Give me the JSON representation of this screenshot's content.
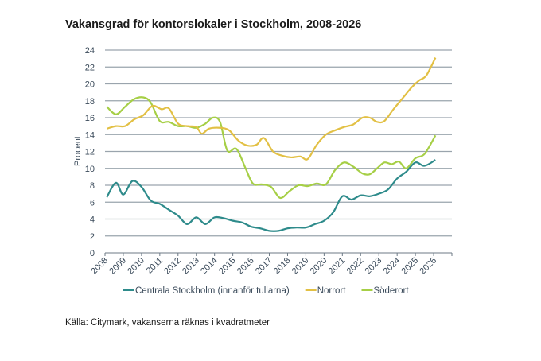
{
  "chart_data": {
    "type": "line",
    "title": "Vakansgrad för kontorslokaler i Stockholm, 2008-2026",
    "xlabel": "",
    "ylabel": "Procent",
    "ylim": [
      0,
      24
    ],
    "yticks": [
      0,
      2,
      4,
      6,
      8,
      10,
      12,
      14,
      16,
      18,
      20,
      22,
      24
    ],
    "xlim": [
      2008,
      2027
    ],
    "xtick_labels": [
      "2008",
      "2009",
      "2010",
      "2011",
      "2012",
      "2013",
      "2014",
      "2015",
      "2016",
      "2017",
      "2018",
      "2019",
      "2020",
      "2021",
      "2022",
      "2023",
      "2024",
      "2025",
      "2026"
    ],
    "grid": true,
    "legend_placement": "bottom",
    "source": "Källa: Citymark, vakanserna räknas i kvadratmeter",
    "series": [
      {
        "name": "Centrala Stockholm (innanför tullarna)",
        "color": "#2e8b8b",
        "x": [
          2008.1,
          2008.6,
          2009.0,
          2009.5,
          2010.0,
          2010.5,
          2011.0,
          2011.5,
          2012.0,
          2012.5,
          2013.0,
          2013.5,
          2014.0,
          2014.5,
          2015.0,
          2015.5,
          2016.0,
          2016.5,
          2017.0,
          2017.5,
          2018.0,
          2018.5,
          2019.0,
          2019.5,
          2020.0,
          2020.5,
          2021.0,
          2021.5,
          2022.0,
          2022.5,
          2023.0,
          2023.5,
          2024.0,
          2024.5,
          2025.0,
          2025.5,
          2026.1
        ],
        "y": [
          6.6,
          8.3,
          6.9,
          8.5,
          7.8,
          6.2,
          5.8,
          5.1,
          4.4,
          3.4,
          4.2,
          3.4,
          4.2,
          4.1,
          3.8,
          3.6,
          3.1,
          2.9,
          2.6,
          2.6,
          2.9,
          3.0,
          3.0,
          3.4,
          3.8,
          4.8,
          6.7,
          6.3,
          6.8,
          6.7,
          7.0,
          7.5,
          8.8,
          9.6,
          10.7,
          10.3,
          11.0
        ]
      },
      {
        "name": "Norrort",
        "color": "#e2c044",
        "x": [
          2008.1,
          2008.6,
          2009.1,
          2009.6,
          2010.1,
          2010.6,
          2011.1,
          2011.5,
          2012.0,
          2012.5,
          2013.0,
          2013.3,
          2013.7,
          2014.3,
          2014.8,
          2015.3,
          2015.8,
          2016.3,
          2016.7,
          2017.2,
          2017.7,
          2018.2,
          2018.7,
          2019.1,
          2019.6,
          2020.1,
          2020.6,
          2021.1,
          2021.6,
          2022.1,
          2022.5,
          2022.9,
          2023.3,
          2023.8,
          2024.3,
          2024.8,
          2025.2,
          2025.6,
          2026.1
        ],
        "y": [
          14.7,
          15.0,
          15.0,
          15.8,
          16.3,
          17.4,
          17.0,
          17.1,
          15.3,
          15.0,
          14.9,
          14.1,
          14.7,
          14.8,
          14.5,
          13.3,
          12.7,
          12.8,
          13.6,
          12.0,
          11.5,
          11.3,
          11.4,
          11.1,
          12.8,
          14.0,
          14.5,
          14.9,
          15.2,
          16.0,
          16.0,
          15.5,
          15.6,
          17.0,
          18.3,
          19.6,
          20.4,
          21.0,
          23.1
        ]
      },
      {
        "name": "Söderort",
        "color": "#a6cf46",
        "x": [
          2008.1,
          2008.6,
          2009.1,
          2009.6,
          2010.1,
          2010.5,
          2011.0,
          2011.5,
          2012.0,
          2012.5,
          2013.0,
          2013.5,
          2013.9,
          2014.3,
          2014.7,
          2015.2,
          2015.7,
          2016.1,
          2016.6,
          2017.1,
          2017.6,
          2018.1,
          2018.6,
          2019.1,
          2019.6,
          2020.1,
          2020.6,
          2021.1,
          2021.6,
          2022.1,
          2022.5,
          2022.9,
          2023.3,
          2023.7,
          2024.1,
          2024.5,
          2025.0,
          2025.5,
          2026.1
        ],
        "y": [
          17.3,
          16.4,
          17.3,
          18.2,
          18.4,
          17.8,
          15.6,
          15.5,
          15.0,
          15.0,
          14.8,
          15.3,
          16.0,
          15.5,
          12.1,
          12.3,
          10.0,
          8.2,
          8.1,
          7.8,
          6.5,
          7.3,
          8.0,
          7.9,
          8.2,
          8.1,
          9.8,
          10.7,
          10.2,
          9.4,
          9.3,
          10.0,
          10.7,
          10.5,
          10.8,
          10.0,
          11.2,
          11.7,
          13.9
        ]
      }
    ]
  }
}
